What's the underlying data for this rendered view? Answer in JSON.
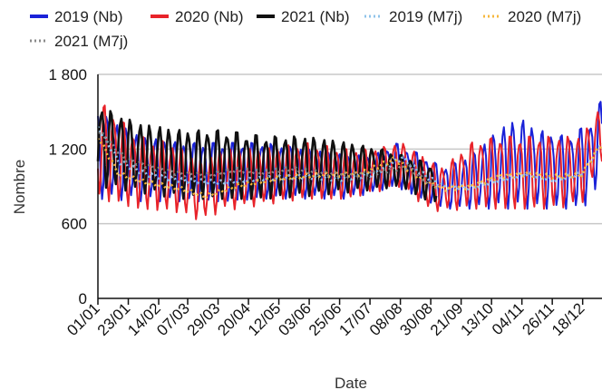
{
  "chart_data": {
    "type": "line",
    "xlabel": "Date",
    "ylabel": "Nombre",
    "ylim": [
      0,
      1800
    ],
    "y_ticks": [
      {
        "value": 0,
        "label": "0"
      },
      {
        "value": 600,
        "label": "600"
      },
      {
        "value": 1200,
        "label": "1 200"
      },
      {
        "value": 1800,
        "label": "1 800"
      }
    ],
    "x_range_days": [
      0,
      365
    ],
    "x_ticks": [
      {
        "day": 0,
        "label": "01/01"
      },
      {
        "day": 22,
        "label": "23/01"
      },
      {
        "day": 44,
        "label": "14/02"
      },
      {
        "day": 65,
        "label": "07/03"
      },
      {
        "day": 87,
        "label": "29/03"
      },
      {
        "day": 109,
        "label": "20/04"
      },
      {
        "day": 131,
        "label": "12/05"
      },
      {
        "day": 153,
        "label": "03/06"
      },
      {
        "day": 175,
        "label": "25/06"
      },
      {
        "day": 197,
        "label": "17/07"
      },
      {
        "day": 219,
        "label": "08/08"
      },
      {
        "day": 241,
        "label": "30/08"
      },
      {
        "day": 263,
        "label": "21/09"
      },
      {
        "day": 285,
        "label": "13/10"
      },
      {
        "day": 307,
        "label": "04/11"
      },
      {
        "day": 329,
        "label": "26/11"
      },
      {
        "day": 351,
        "label": "18/12"
      }
    ],
    "grid": true,
    "legend_position": "top",
    "series": [
      {
        "name": "2019 (Nb)",
        "color": "#1a22d8",
        "style": "solid",
        "weekly_range": [
          [
            0,
            800,
            1500
          ],
          [
            30,
            780,
            1300
          ],
          [
            60,
            780,
            1250
          ],
          [
            90,
            780,
            1250
          ],
          [
            120,
            800,
            1250
          ],
          [
            150,
            800,
            1200
          ],
          [
            180,
            800,
            1150
          ],
          [
            200,
            850,
            1150
          ],
          [
            215,
            900,
            1250
          ],
          [
            235,
            800,
            1150
          ],
          [
            250,
            720,
            1050
          ],
          [
            270,
            720,
            1150
          ],
          [
            290,
            720,
            1350
          ],
          [
            305,
            720,
            1450
          ],
          [
            320,
            720,
            1350
          ],
          [
            340,
            720,
            1300
          ],
          [
            355,
            750,
            1400
          ],
          [
            365,
            1000,
            1600
          ]
        ]
      },
      {
        "name": "2020 (Nb)",
        "color": "#e8232a",
        "style": "solid",
        "weekly_range": [
          [
            0,
            800,
            1600
          ],
          [
            30,
            720,
            1300
          ],
          [
            55,
            700,
            1250
          ],
          [
            75,
            620,
            1100
          ],
          [
            90,
            700,
            1200
          ],
          [
            120,
            750,
            1200
          ],
          [
            150,
            800,
            1250
          ],
          [
            180,
            800,
            1200
          ],
          [
            200,
            850,
            1200
          ],
          [
            220,
            900,
            1250
          ],
          [
            240,
            700,
            1100
          ],
          [
            250,
            700,
            1050
          ],
          [
            270,
            720,
            1250
          ],
          [
            290,
            720,
            1300
          ],
          [
            310,
            720,
            1300
          ],
          [
            330,
            720,
            1300
          ],
          [
            350,
            750,
            1300
          ],
          [
            365,
            1100,
            1550
          ]
        ]
      },
      {
        "name": "2021 (Nb)",
        "color": "#111111",
        "style": "solid",
        "range_days": [
          0,
          245
        ],
        "weekly_range": [
          [
            0,
            900,
            1550
          ],
          [
            30,
            850,
            1400
          ],
          [
            60,
            800,
            1350
          ],
          [
            90,
            800,
            1350
          ],
          [
            120,
            800,
            1300
          ],
          [
            150,
            820,
            1300
          ],
          [
            180,
            850,
            1250
          ],
          [
            205,
            880,
            1200
          ],
          [
            220,
            900,
            1150
          ],
          [
            235,
            800,
            1100
          ],
          [
            245,
            780,
            1050
          ]
        ]
      },
      {
        "name": "2019 (M7j)",
        "color": "#8fc3ea",
        "style": "dotted",
        "mean": [
          [
            0,
            1380
          ],
          [
            15,
            1100
          ],
          [
            35,
            1000
          ],
          [
            60,
            950
          ],
          [
            90,
            930
          ],
          [
            120,
            960
          ],
          [
            150,
            980
          ],
          [
            175,
            960
          ],
          [
            200,
            1000
          ],
          [
            220,
            1130
          ],
          [
            235,
            1000
          ],
          [
            250,
            900
          ],
          [
            270,
            890
          ],
          [
            290,
            950
          ],
          [
            310,
            1000
          ],
          [
            330,
            950
          ],
          [
            350,
            1000
          ],
          [
            365,
            1250
          ]
        ]
      },
      {
        "name": "2020 (M7j)",
        "color": "#f6b73c",
        "style": "dotted",
        "mean": [
          [
            0,
            1300
          ],
          [
            15,
            1000
          ],
          [
            35,
            930
          ],
          [
            60,
            880
          ],
          [
            78,
            820
          ],
          [
            100,
            900
          ],
          [
            130,
            960
          ],
          [
            160,
            990
          ],
          [
            190,
            1000
          ],
          [
            215,
            1120
          ],
          [
            235,
            950
          ],
          [
            250,
            880
          ],
          [
            270,
            900
          ],
          [
            290,
            980
          ],
          [
            310,
            1000
          ],
          [
            330,
            980
          ],
          [
            350,
            990
          ],
          [
            365,
            1250
          ]
        ]
      },
      {
        "name": "2021 (M7j)",
        "color": "#8a8a8a",
        "style": "dotted",
        "range_days": [
          0,
          245
        ],
        "mean": [
          [
            0,
            1350
          ],
          [
            20,
            1120
          ],
          [
            40,
            1050
          ],
          [
            60,
            1000
          ],
          [
            80,
            990
          ],
          [
            100,
            1030
          ],
          [
            120,
            1010
          ],
          [
            140,
            1040
          ],
          [
            160,
            1010
          ],
          [
            180,
            990
          ],
          [
            200,
            1010
          ],
          [
            215,
            1040
          ],
          [
            225,
            1060
          ],
          [
            235,
            960
          ],
          [
            245,
            900
          ]
        ]
      }
    ]
  }
}
